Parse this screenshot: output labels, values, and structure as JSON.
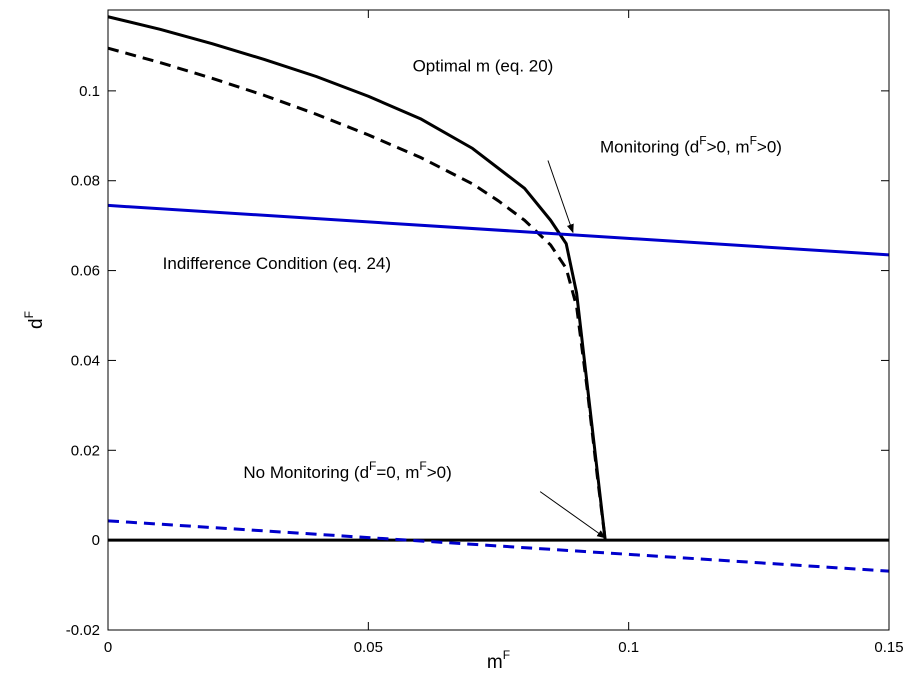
{
  "chart_data": {
    "type": "line",
    "title": "",
    "xlabel": {
      "base": "m",
      "sup": "F"
    },
    "ylabel": {
      "base": "d",
      "sup": "F"
    },
    "xlim": [
      0,
      0.15
    ],
    "ylim": [
      -0.02,
      0.118
    ],
    "x_ticks": [
      0,
      0.05,
      0.1,
      0.15
    ],
    "x_tick_labels": [
      "0",
      "0.05",
      "0.1",
      "0.15"
    ],
    "y_ticks": [
      -0.02,
      0,
      0.02,
      0.04,
      0.06,
      0.08,
      0.1
    ],
    "y_tick_labels": [
      "-0.02",
      "0",
      "0.02",
      "0.04",
      "0.06",
      "0.08",
      "0.1"
    ],
    "grid": false,
    "legend": "none",
    "series": [
      {
        "color": "#000000",
        "dash": "solid",
        "x": [
          0,
          0.01,
          0.02,
          0.03,
          0.04,
          0.05,
          0.06,
          0.07,
          0.08,
          0.085,
          0.088,
          0.09,
          0.092,
          0.094,
          0.0955
        ],
        "y": [
          0.1165,
          0.1137,
          0.1105,
          0.107,
          0.1032,
          0.0988,
          0.0938,
          0.0872,
          0.0783,
          0.0712,
          0.066,
          0.055,
          0.035,
          0.015,
          0.0
        ]
      },
      {
        "color": "#000000",
        "dash": "dashed",
        "x": [
          0,
          0.01,
          0.02,
          0.03,
          0.04,
          0.05,
          0.06,
          0.07,
          0.075,
          0.08,
          0.085,
          0.088,
          0.09,
          0.092,
          0.094,
          0.0955
        ],
        "y": [
          0.1095,
          0.1063,
          0.1028,
          0.099,
          0.0948,
          0.0902,
          0.0852,
          0.0793,
          0.0755,
          0.0712,
          0.0657,
          0.0605,
          0.052,
          0.034,
          0.014,
          0.0
        ]
      },
      {
        "color": "#000000",
        "dash": "solid",
        "x": [
          0,
          0.15
        ],
        "y": [
          0,
          0
        ]
      },
      {
        "color": "#0000cc",
        "dash": "solid",
        "x": [
          0,
          0.15
        ],
        "y": [
          0.0745,
          0.0635
        ]
      },
      {
        "color": "#0000cc",
        "dash": "dashed",
        "x": [
          0,
          0.15
        ],
        "y": [
          0.0043,
          -0.0069
        ]
      }
    ],
    "annotations": [
      {
        "kind": "text",
        "text": "Optimal m (eq. 20)",
        "x": 0.0585,
        "y": 0.1043
      },
      {
        "kind": "text",
        "text": "Indifference Condition (eq. 24)",
        "x": 0.0105,
        "y": 0.0603
      },
      {
        "kind": "rich",
        "parts": [
          "Monitoring (d",
          "F",
          ">0, m",
          "F",
          ">0)"
        ],
        "x": 0.0945,
        "y": 0.0863
      },
      {
        "kind": "rich",
        "parts": [
          "No Monitoring (d",
          "F",
          "=0, m",
          "F",
          ">0)"
        ],
        "x": 0.026,
        "y": 0.0138
      },
      {
        "kind": "arrow",
        "from": [
          0.0845,
          0.0845
        ],
        "to": [
          0.0893,
          0.0685
        ]
      },
      {
        "kind": "arrow",
        "from": [
          0.083,
          0.0108
        ],
        "to": [
          0.0955,
          0.0005
        ]
      }
    ]
  }
}
